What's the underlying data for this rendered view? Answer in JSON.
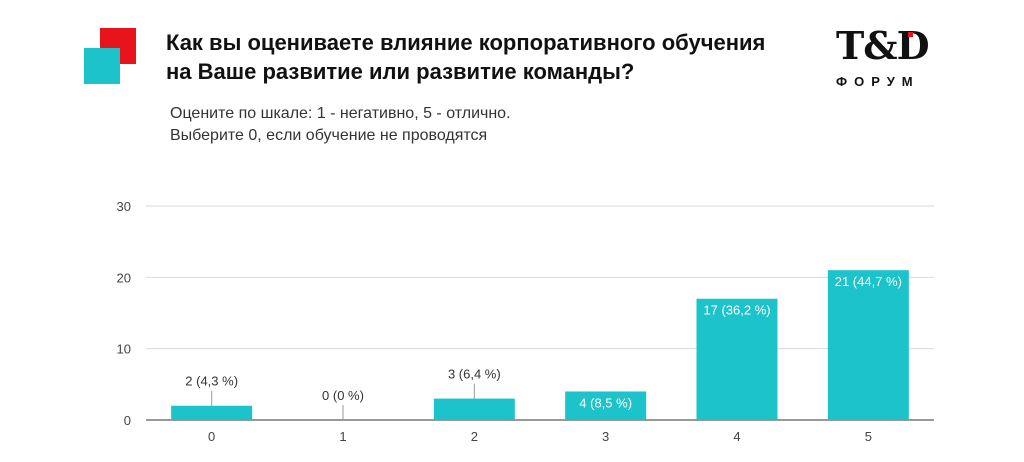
{
  "header": {
    "title_line1": "Как вы оцениваете влияние корпоративного обучения",
    "title_line2": "на Ваше развитие или развитие команды?",
    "subtitle_line1": "Оцените по шкале: 1 - негативно, 5 - отлично.",
    "subtitle_line2": "Выберите 0, если обучение не проводятся"
  },
  "logo": {
    "main": "T&D",
    "sub": "ФОРУМ"
  },
  "colors": {
    "accent_red": "#e8141b",
    "accent_teal": "#1cc3cb",
    "bar": "#1cc3cb"
  },
  "chart_data": {
    "type": "bar",
    "categories": [
      "0",
      "1",
      "2",
      "3",
      "4",
      "5"
    ],
    "values": [
      2,
      0,
      3,
      4,
      17,
      21
    ],
    "data_labels": [
      "2 (4,3 %)",
      "0 (0 %)",
      "3 (6,4 %)",
      "4 (8,5 %)",
      "17 (36,2 %)",
      "21 (44,7 %)"
    ],
    "yticks": [
      "0",
      "10",
      "20",
      "30"
    ],
    "ylim": [
      0,
      30
    ],
    "grid": true,
    "legend": "none"
  }
}
